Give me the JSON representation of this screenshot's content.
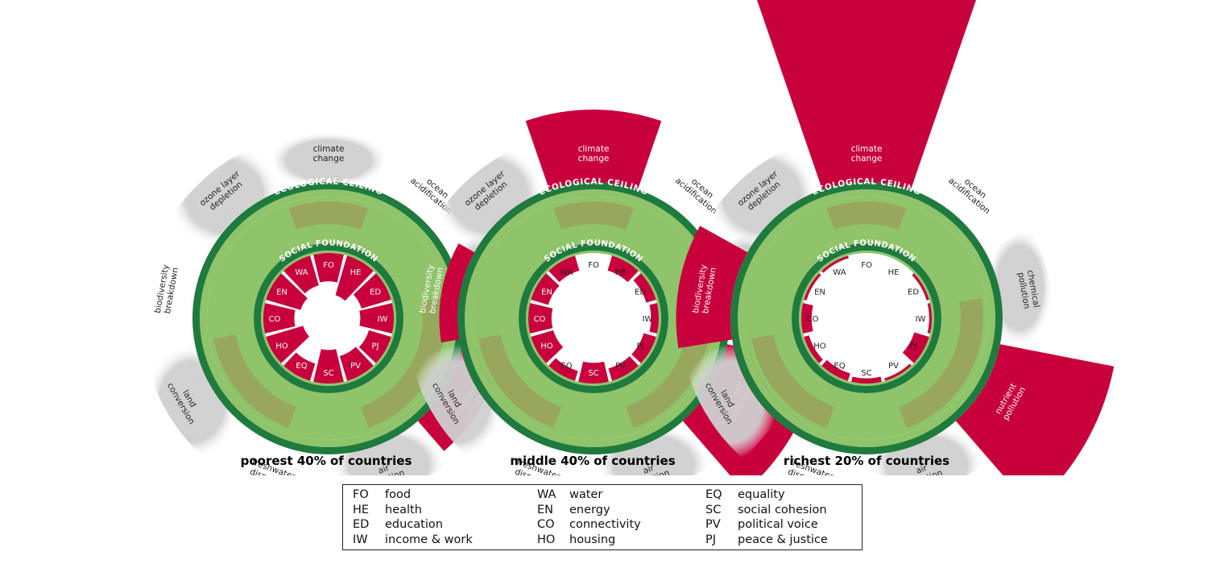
{
  "colors": {
    "shortfall": "#c8003c",
    "ring_dark": "#1f7a3d",
    "ring_light": "#8fc46a",
    "ring_mid": "#9aa25a",
    "wedge_gray": "#cfcfcf",
    "label_text": "#222222",
    "caption_text": "#000000"
  },
  "ring_labels": {
    "ecological_ceiling": "ECOLOGICAL CEILING",
    "social_foundation": "SOCIAL FOUNDATION"
  },
  "ecological_dimensions": [
    {
      "code": "climate",
      "label": [
        "climate",
        "change"
      ]
    },
    {
      "code": "ocean",
      "label": [
        "ocean",
        "acidification"
      ]
    },
    {
      "code": "chemical",
      "label": [
        "chemical",
        "pollution"
      ]
    },
    {
      "code": "nutrient",
      "label": [
        "nutrient",
        "pollution"
      ]
    },
    {
      "code": "air",
      "label": [
        "air",
        "pollution"
      ]
    },
    {
      "code": "freshwater",
      "label": [
        "freshwater",
        "disruption"
      ]
    },
    {
      "code": "land",
      "label": [
        "land",
        "conversion"
      ]
    },
    {
      "code": "biodiversity",
      "label": [
        "biodiversity",
        "breakdown"
      ]
    },
    {
      "code": "ozone",
      "label": [
        "ozone layer",
        "depletion"
      ]
    }
  ],
  "social_codes": [
    "FO",
    "HE",
    "ED",
    "IW",
    "PJ",
    "PV",
    "SC",
    "EQ",
    "HO",
    "CO",
    "EN",
    "WA"
  ],
  "doughnuts": [
    {
      "caption": "poorest 40% of countries",
      "overshoot": [
        0,
        0,
        0,
        0.55,
        0,
        0,
        0,
        0,
        0
      ],
      "shortfall": [
        0.55,
        0.8,
        0.6,
        0.65,
        0.45,
        0.5,
        0.65,
        0.35,
        0.75,
        0.6,
        0.7,
        0.6
      ]
    },
    {
      "caption": "middle 40% of countries",
      "overshoot": [
        1.0,
        0,
        0,
        1.3,
        0,
        0,
        0,
        0.25,
        0
      ],
      "shortfall": [
        0,
        0.3,
        0.2,
        0.15,
        0.25,
        0.25,
        0.4,
        0.2,
        0.45,
        0.45,
        0.35,
        0.3
      ]
    },
    {
      "caption": "richest 20% of countries",
      "overshoot": [
        4.8,
        0,
        0,
        1.6,
        0,
        0,
        0,
        0.75,
        0
      ],
      "shortfall": [
        0,
        0,
        0.05,
        0.05,
        0.3,
        0.05,
        0.1,
        0.15,
        0.1,
        0.2,
        0.05,
        0.05
      ]
    }
  ],
  "legend": {
    "columns": [
      [
        {
          "code": "FO",
          "label": "food"
        },
        {
          "code": "HE",
          "label": "health"
        },
        {
          "code": "ED",
          "label": "education"
        },
        {
          "code": "IW",
          "label": "income & work"
        }
      ],
      [
        {
          "code": "WA",
          "label": "water"
        },
        {
          "code": "EN",
          "label": "energy"
        },
        {
          "code": "CO",
          "label": "connectivity"
        },
        {
          "code": "HO",
          "label": "housing"
        }
      ],
      [
        {
          "code": "EQ",
          "label": "equality"
        },
        {
          "code": "SC",
          "label": "social cohesion"
        },
        {
          "code": "PV",
          "label": "political voice"
        },
        {
          "code": "PJ",
          "label": "peace & justice"
        }
      ]
    ]
  }
}
